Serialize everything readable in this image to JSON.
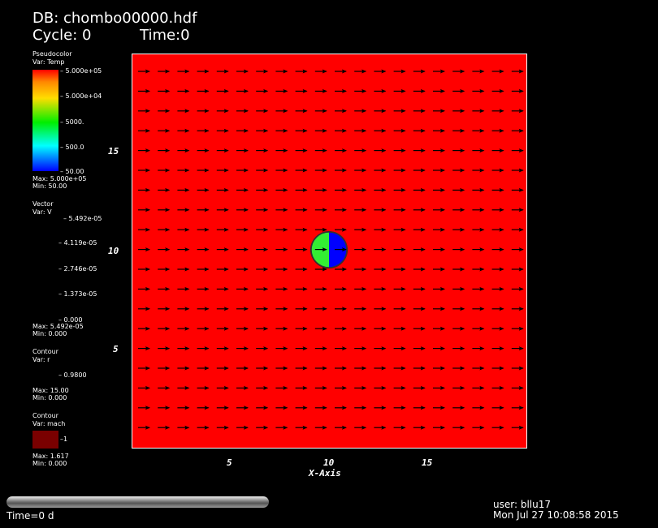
{
  "header": {
    "db": "DB: chombo00000.hdf",
    "cycle": "Cycle: 0",
    "time": "Time:0"
  },
  "legend_pseudocolor": {
    "title": "Pseudocolor",
    "var": "Var: Temp",
    "ticks": [
      "5.000e+05",
      "5.000e+04",
      "5000.",
      "500.0",
      "50.00"
    ],
    "max": "Max:  5.000e+05",
    "min": "Min:  50.00"
  },
  "legend_vector": {
    "title": "Vector",
    "var": "Var: V",
    "ticks": [
      "5.492e-05",
      "4.119e-05",
      "2.746e-05",
      "1.373e-05",
      "0.000"
    ],
    "max": "Max:  5.492e-05",
    "min": "Min:  0.000"
  },
  "legend_contour_r": {
    "title": "Contour",
    "var": "Var: r",
    "level": "0.9800",
    "max": "Max:  15.00",
    "min": "Min:  0.000"
  },
  "legend_contour_mach": {
    "title": "Contour",
    "var": "Var: mach",
    "level": "1",
    "swatch_color": "#7a0000",
    "max": "Max:  1.617",
    "min": "Min:  0.000"
  },
  "axes": {
    "x_title": "X-Axis",
    "x_ticks": [
      "5",
      "10",
      "15"
    ],
    "y_ticks": [
      "15",
      "10",
      "5"
    ]
  },
  "colors": {
    "field": "#ff0000",
    "disk_left": "#33ee33",
    "disk_right": "#0000ff",
    "arrow": "#000000"
  },
  "footer": {
    "time_label": "Time=0 d",
    "user": "user: bllu17",
    "date": "Mon Jul 27 10:08:58 2015"
  }
}
